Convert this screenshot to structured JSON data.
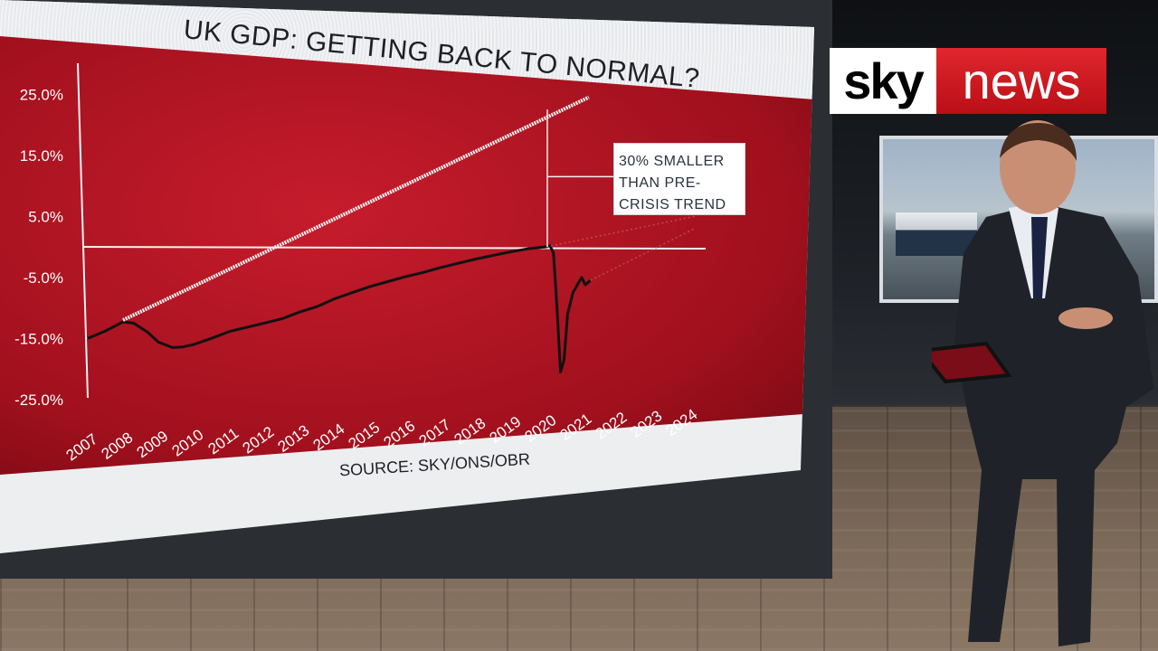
{
  "broadcast": {
    "logo": {
      "word1": "sky",
      "word2": "news"
    }
  },
  "chart_data": {
    "type": "line",
    "title": "UK GDP: GETTING BACK TO NORMAL?",
    "source": "SOURCE: SKY/ONS/OBR",
    "xlabel": "",
    "ylabel": "",
    "x_ticks": [
      "2007",
      "2008",
      "2009",
      "2010",
      "2011",
      "2012",
      "2013",
      "2014",
      "2015",
      "2016",
      "2017",
      "2018",
      "2019",
      "2020",
      "2021",
      "2022",
      "2023",
      "2024"
    ],
    "y_ticks": [
      "25.0%",
      "15.0%",
      "5.0%",
      "-5.0%",
      "-15.0%",
      "-25.0%"
    ],
    "xlim": [
      2007,
      2024
    ],
    "ylim": [
      -25,
      25
    ],
    "reference_line_y": 0,
    "callout": {
      "lines": [
        "30% SMALLER",
        "THAN PRE-",
        "CRISIS TREND"
      ]
    },
    "series": [
      {
        "style": "solid",
        "color": "#111111",
        "x": [
          2007.0,
          2007.5,
          2008.0,
          2008.3,
          2008.7,
          2009.0,
          2009.4,
          2009.7,
          2010.0,
          2010.5,
          2011.0,
          2011.5,
          2012.0,
          2012.5,
          2013.0,
          2013.5,
          2014.0,
          2014.5,
          2015.0,
          2015.5,
          2016.0,
          2016.5,
          2017.0,
          2017.5,
          2018.0,
          2018.5,
          2019.0,
          2019.5,
          2020.0,
          2020.1,
          2020.2,
          2020.3,
          2020.4,
          2020.5,
          2020.6,
          2020.75,
          2020.9,
          2021.0,
          2021.1,
          2021.25
        ],
        "y": [
          -15.0,
          -13.8,
          -12.3,
          -12.5,
          -14.0,
          -15.6,
          -16.5,
          -16.4,
          -16.0,
          -15.0,
          -13.9,
          -13.2,
          -12.5,
          -11.8,
          -10.7,
          -9.8,
          -8.5,
          -7.5,
          -6.5,
          -5.7,
          -4.9,
          -4.2,
          -3.4,
          -2.7,
          -2.0,
          -1.4,
          -0.8,
          -0.3,
          0.0,
          0.2,
          -1.0,
          -10.0,
          -20.5,
          -18.5,
          -11.0,
          -7.5,
          -6.0,
          -5.0,
          -6.2,
          -5.5
        ]
      },
      {
        "style": "dashed",
        "color": "#f1f1f1",
        "x": [
          2008.0,
          2021.2
        ],
        "y": [
          -12.0,
          24.5
        ]
      },
      {
        "style": "faint-dotted",
        "color": "#c8565d",
        "x": [
          2021.25,
          2024.2
        ],
        "y": [
          -5.5,
          3.0
        ]
      },
      {
        "style": "faint-dotted",
        "color": "#c8565d",
        "x": [
          2020.0,
          2024.2
        ],
        "y": [
          0.0,
          5.0
        ]
      }
    ]
  }
}
